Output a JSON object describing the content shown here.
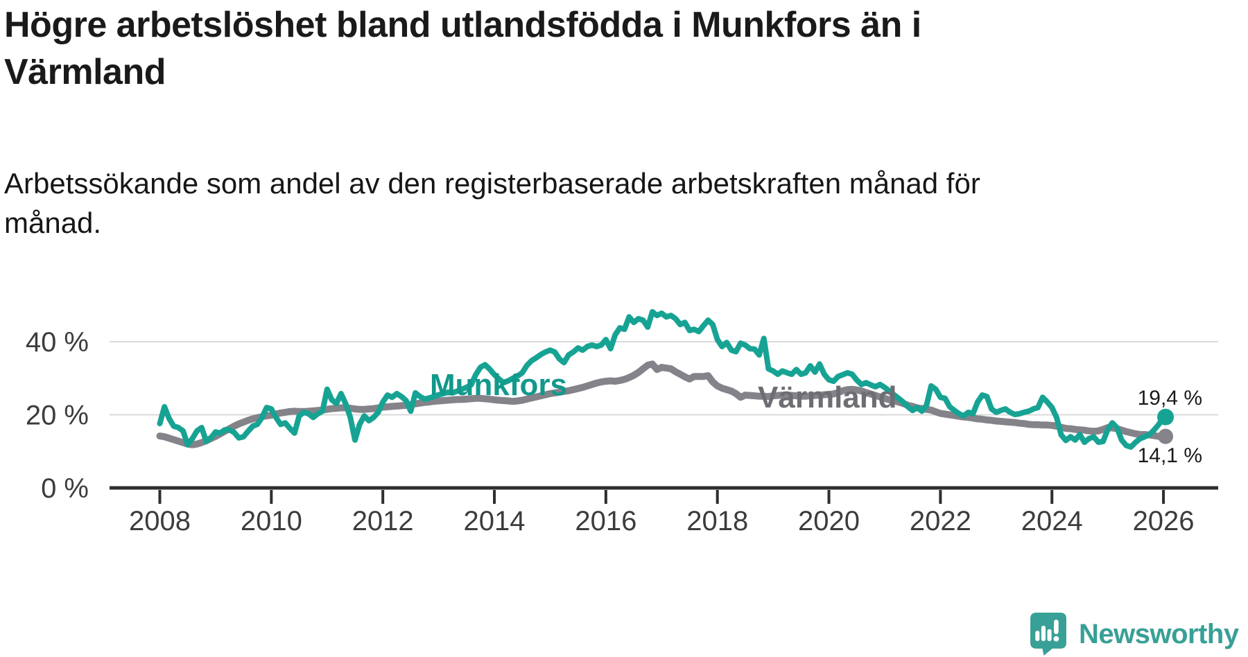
{
  "header": {
    "title_lines": [
      "Högre arbetslöshet bland utlandsfödda i Munkfors än i",
      "Värmland"
    ],
    "subtitle_lines": [
      "Arbetssökande som andel av den registerbaserade arbetskraften månad för",
      "månad."
    ]
  },
  "chart_data": {
    "type": "line",
    "title": "Högre arbetslöshet bland utlandsfödda i Munkfors än i Värmland",
    "subtitle": "Arbetssökande som andel av den registerbaserade arbetskraften månad för månad.",
    "units": "%",
    "x_monthly_from": "2008-01",
    "x_monthly_to": "2026-01",
    "x_tick_labels": [
      "2008",
      "2010",
      "2012",
      "2014",
      "2016",
      "2018",
      "2020",
      "2022",
      "2024",
      "2026"
    ],
    "y_tick_labels": [
      "0 %",
      "20 %",
      "40 %"
    ],
    "y_tick_values": [
      0,
      20,
      40
    ],
    "ylim": [
      0,
      50
    ],
    "grid": "horizontal",
    "legend": "inline-labels",
    "colors": {
      "grid": "#dadada",
      "axis": "#2e2e2e",
      "axis_text": "#3c3c3c",
      "accent_teal": "#17a394",
      "neutral_gray": "#84838a"
    },
    "series": [
      {
        "name": "Munkfors",
        "color": "#17a394",
        "label_color": "#11998b",
        "end_label": "19,4 %",
        "end_value": 19.4,
        "values": [
          17.6,
          22.2,
          19.0,
          16.9,
          16.5,
          15.6,
          11.8,
          13.5,
          15.6,
          16.5,
          12.7,
          13.7,
          15.3,
          15.0,
          15.9,
          15.9,
          15.2,
          13.7,
          14.0,
          15.5,
          16.9,
          17.4,
          19.3,
          22.0,
          21.6,
          19.3,
          17.4,
          17.8,
          16.3,
          15.0,
          19.7,
          20.7,
          20.3,
          19.3,
          20.3,
          21.0,
          27.0,
          24.1,
          23.1,
          25.8,
          23.0,
          19.3,
          13.1,
          17.4,
          19.7,
          18.4,
          19.3,
          20.7,
          23.5,
          25.4,
          24.8,
          25.8,
          25.0,
          23.9,
          21.0,
          26.0,
          25.0,
          24.3,
          24.6,
          25.0,
          25.5,
          25.8,
          26.2,
          26.0,
          26.5,
          27.0,
          27.5,
          28.2,
          31.0,
          33.0,
          33.7,
          32.5,
          31.0,
          29.8,
          28.8,
          29.3,
          30.0,
          30.6,
          31.5,
          33.5,
          34.8,
          35.6,
          36.5,
          37.2,
          37.7,
          37.2,
          35.3,
          34.3,
          36.4,
          37.2,
          38.3,
          37.7,
          38.7,
          39.1,
          38.7,
          39.1,
          40.6,
          38.1,
          41.9,
          43.8,
          43.4,
          46.8,
          45.3,
          46.3,
          45.9,
          44.0,
          48.2,
          47.2,
          47.8,
          46.8,
          47.2,
          46.3,
          44.7,
          45.3,
          43.1,
          43.4,
          42.8,
          44.4,
          45.9,
          44.7,
          40.6,
          38.7,
          39.8,
          37.7,
          37.3,
          39.6,
          39.1,
          38.1,
          38.0,
          36.4,
          40.9,
          32.6,
          32.0,
          31.1,
          32.0,
          31.5,
          31.1,
          32.4,
          31.1,
          31.5,
          33.4,
          31.7,
          33.9,
          31.1,
          29.6,
          29.2,
          30.5,
          31.0,
          31.5,
          31.1,
          29.5,
          28.3,
          28.8,
          28.2,
          27.7,
          28.3,
          27.5,
          26.5,
          25.5,
          24.5,
          23.5,
          22.2,
          21.2,
          22.0,
          21.0,
          22.6,
          27.9,
          27.0,
          24.8,
          24.5,
          22.2,
          21.2,
          20.3,
          19.7,
          20.7,
          20.3,
          23.5,
          25.4,
          25.0,
          21.6,
          20.7,
          21.2,
          21.6,
          20.7,
          20.1,
          20.3,
          20.7,
          21.0,
          21.6,
          22.0,
          24.8,
          23.5,
          22.0,
          19.3,
          14.5,
          13.0,
          14.0,
          13.1,
          14.6,
          12.5,
          13.5,
          14.0,
          12.5,
          12.7,
          15.9,
          17.8,
          16.5,
          13.1,
          11.6,
          11.2,
          12.5,
          13.5,
          14.0,
          14.6,
          15.9,
          17.4,
          19.4
        ]
      },
      {
        "name": "Värmland",
        "color": "#84838a",
        "label_color": "#6e6d73",
        "end_label": "14,1 %",
        "end_value": 14.1,
        "values": [
          14.2,
          14.0,
          13.6,
          13.2,
          12.8,
          12.4,
          12.0,
          11.8,
          12.0,
          12.4,
          12.9,
          13.5,
          14.1,
          14.8,
          15.5,
          16.2,
          16.9,
          17.5,
          18.0,
          18.5,
          18.9,
          19.2,
          19.5,
          19.7,
          19.9,
          20.2,
          20.5,
          20.7,
          20.9,
          21.0,
          20.9,
          20.9,
          21.0,
          21.1,
          21.2,
          21.3,
          21.5,
          21.7,
          21.8,
          21.9,
          21.9,
          21.8,
          21.6,
          21.5,
          21.5,
          21.6,
          21.7,
          21.9,
          22.1,
          22.2,
          22.3,
          22.4,
          22.5,
          22.6,
          22.8,
          23.0,
          23.2,
          23.4,
          23.5,
          23.7,
          23.8,
          23.9,
          24.0,
          24.1,
          24.2,
          24.2,
          24.3,
          24.4,
          24.5,
          24.5,
          24.4,
          24.3,
          24.1,
          24.0,
          23.9,
          23.8,
          23.7,
          23.8,
          24.0,
          24.3,
          24.6,
          24.9,
          25.2,
          25.5,
          25.8,
          26.0,
          26.2,
          26.4,
          26.6,
          26.9,
          27.2,
          27.5,
          27.9,
          28.3,
          28.7,
          29.0,
          29.2,
          29.3,
          29.2,
          29.4,
          29.7,
          30.2,
          30.8,
          31.6,
          32.6,
          33.6,
          33.9,
          32.4,
          33.0,
          32.8,
          32.6,
          31.8,
          31.1,
          30.4,
          29.8,
          30.5,
          30.5,
          30.5,
          30.7,
          29.0,
          27.9,
          27.3,
          26.9,
          26.5,
          25.8,
          24.8,
          25.4,
          25.3,
          25.2,
          25.1,
          25.1,
          25.0,
          25.2,
          25.3,
          25.4,
          25.4,
          25.3,
          25.2,
          25.1,
          25.1,
          25.2,
          25.3,
          25.4,
          25.5,
          25.6,
          25.7,
          26.1,
          26.6,
          26.9,
          27.0,
          26.8,
          26.5,
          26.1,
          25.7,
          25.3,
          24.9,
          24.5,
          24.1,
          23.8,
          23.5,
          23.1,
          22.6,
          22.3,
          21.9,
          21.7,
          21.5,
          21.3,
          20.8,
          20.4,
          20.2,
          20.0,
          19.8,
          19.6,
          19.4,
          19.3,
          19.1,
          18.9,
          18.8,
          18.6,
          18.5,
          18.3,
          18.2,
          18.1,
          18.0,
          17.9,
          17.7,
          17.6,
          17.4,
          17.3,
          17.3,
          17.2,
          17.2,
          17.1,
          16.9,
          16.6,
          16.3,
          16.2,
          16.0,
          15.9,
          15.8,
          15.6,
          15.5,
          15.6,
          16.0,
          16.5,
          16.4,
          16.2,
          15.8,
          15.4,
          15.1,
          14.8,
          14.6,
          14.6,
          14.5,
          14.3,
          14.1,
          14.1
        ]
      }
    ]
  },
  "footer": {
    "brand": "Newsworthy"
  }
}
